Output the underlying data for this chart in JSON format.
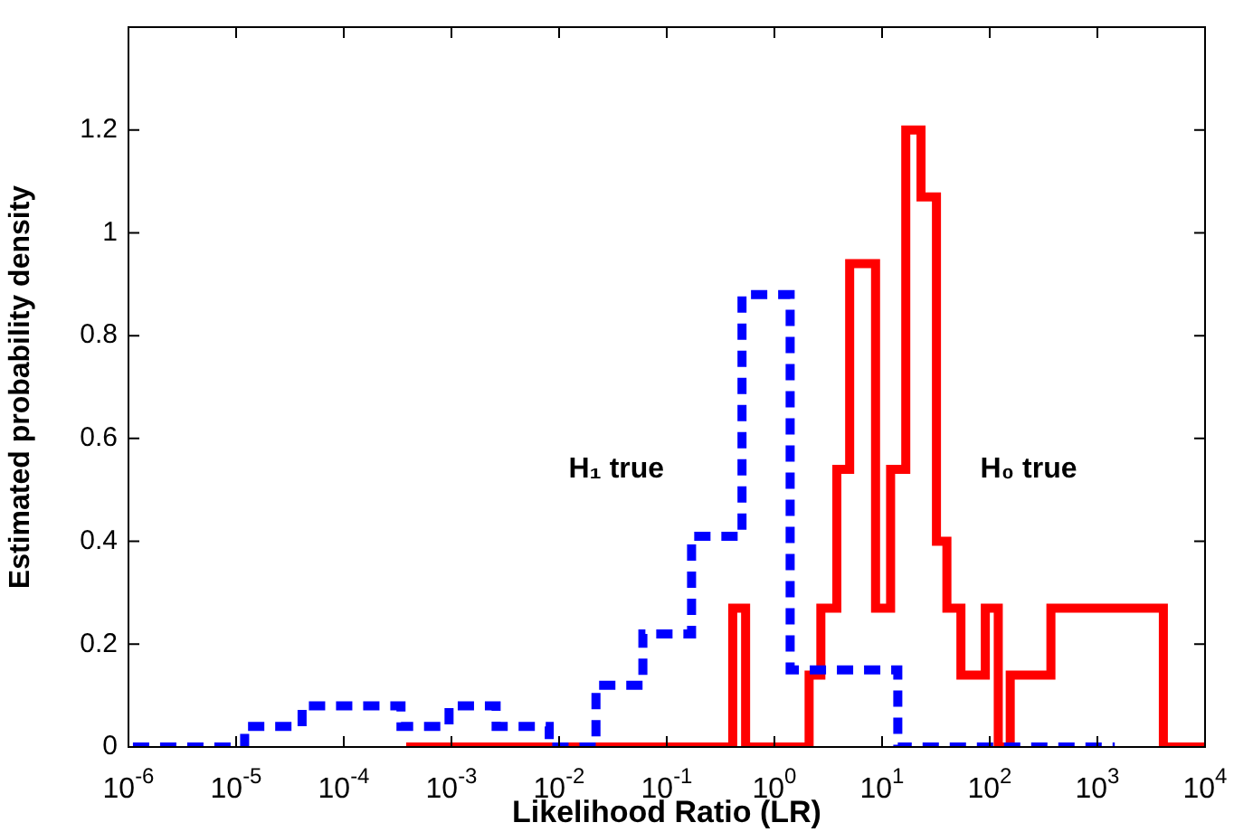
{
  "chart_data": {
    "type": "step",
    "xlabel": "Likelihood Ratio (LR)",
    "ylabel": "Estimated probability density",
    "log": "x",
    "xlim": [
      1e-06,
      10000
    ],
    "ylim": [
      0,
      1.4
    ],
    "xticks": [
      {
        "value": 1e-06,
        "label": "10$^{-6}$"
      },
      {
        "value": 1e-05,
        "label": "10$^{-5}$"
      },
      {
        "value": 0.0001,
        "label": "10$^{-4}$"
      },
      {
        "value": 0.001,
        "label": "10$^{-3}$"
      },
      {
        "value": 0.01,
        "label": "10$^{-2}$"
      },
      {
        "value": 0.1,
        "label": "10$^{-1}$"
      },
      {
        "value": 1,
        "label": "10$^{0}$"
      },
      {
        "value": 10,
        "label": "10$^{1}$"
      },
      {
        "value": 100,
        "label": "10$^{2}$"
      },
      {
        "value": 1000,
        "label": "10$^{3}$"
      },
      {
        "value": 10000,
        "label": "10$^{4}$"
      }
    ],
    "yticks": [
      0,
      0.2,
      0.4,
      0.6,
      0.8,
      1,
      1.2
    ],
    "series": [
      {
        "name": "H₁ true",
        "color": "#0000ff",
        "line_style": "dashed",
        "x": [
          1.1e-06,
          1.2e-05,
          4.1e-05,
          0.00034,
          0.00095,
          0.0026,
          0.0081,
          0.022,
          0.06,
          0.17,
          0.5,
          1.4,
          14,
          1450
        ],
        "values": [
          0,
          0.04,
          0.08,
          0.04,
          0.08,
          0.04,
          0,
          0.12,
          0.22,
          0.41,
          0.88,
          0.15,
          0,
          0
        ]
      },
      {
        "name": "H₀ true",
        "color": "#ff0000",
        "line_style": "solid",
        "x": [
          0.00038,
          0.41,
          0.54,
          2.1,
          2.7,
          3.8,
          5,
          8.7,
          12,
          16.6,
          23,
          32,
          40,
          54,
          91,
          120,
          155,
          370,
          4100,
          10000
        ],
        "values": [
          0,
          0.27,
          0,
          0.14,
          0.27,
          0.54,
          0.94,
          0.27,
          0.54,
          1.2,
          1.07,
          0.4,
          0.27,
          0.14,
          0.27,
          0,
          0.14,
          0.27,
          0,
          0
        ]
      }
    ]
  }
}
